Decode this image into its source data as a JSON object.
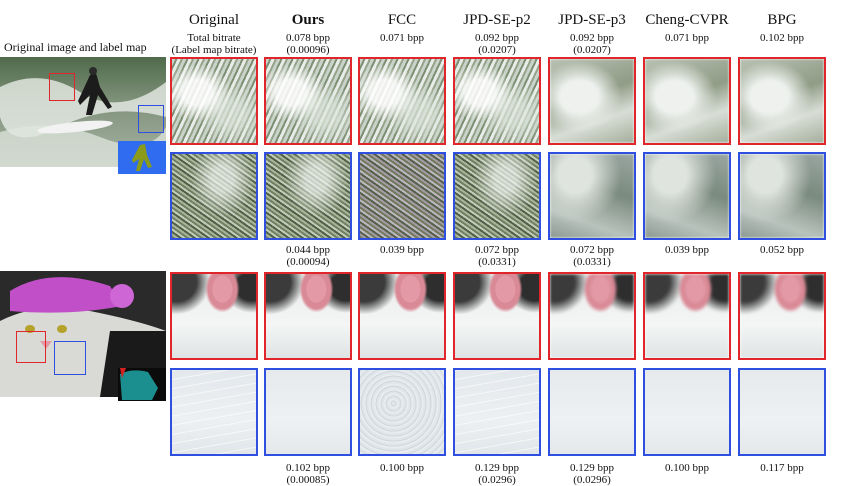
{
  "side_title": "Original image and label map",
  "columns": [
    {
      "label": "Original",
      "bold": false,
      "surf_caption": [
        "Total bitrate",
        "(Label map bitrate)"
      ],
      "cat_caption_top": [
        "",
        ""
      ],
      "cat_caption_bottom": [
        "",
        ""
      ]
    },
    {
      "label": "Ours",
      "bold": true,
      "surf_caption": [
        "0.078 bpp",
        "(0.00096)"
      ],
      "cat_caption_top": [
        "0.044 bpp",
        "(0.00094)"
      ],
      "cat_caption_bottom": [
        "0.102 bpp",
        "(0.00085)"
      ]
    },
    {
      "label": "FCC",
      "bold": false,
      "surf_caption": [
        "0.071 bpp",
        ""
      ],
      "cat_caption_top": [
        "0.039 bpp",
        ""
      ],
      "cat_caption_bottom": [
        "0.100 bpp",
        ""
      ]
    },
    {
      "label": "JPD-SE-p2",
      "bold": false,
      "surf_caption": [
        "0.092 bpp",
        "(0.0207)"
      ],
      "cat_caption_top": [
        "0.072 bpp",
        "(0.0331)"
      ],
      "cat_caption_bottom": [
        "0.129 bpp",
        "(0.0296)"
      ]
    },
    {
      "label": "JPD-SE-p3",
      "bold": false,
      "surf_caption": [
        "0.092 bpp",
        "(0.0207)"
      ],
      "cat_caption_top": [
        "0.072 bpp",
        "(0.0331)"
      ],
      "cat_caption_bottom": [
        "0.129 bpp",
        "(0.0296)"
      ]
    },
    {
      "label": "Cheng-CVPR",
      "bold": false,
      "surf_caption": [
        "0.071 bpp",
        ""
      ],
      "cat_caption_top": [
        "0.039 bpp",
        ""
      ],
      "cat_caption_bottom": [
        "0.100 bpp",
        ""
      ]
    },
    {
      "label": "BPG",
      "bold": false,
      "surf_caption": [
        "0.102 bpp",
        ""
      ],
      "cat_caption_top": [
        "0.052 bpp",
        ""
      ],
      "cat_caption_bottom": [
        "0.117 bpp",
        ""
      ]
    }
  ],
  "colors": {
    "red_crop": "#e0262a",
    "blue_crop": "#2f4fe0",
    "label_bg_surf": "#2f6cf0",
    "label_bg_cat": "#1b8f8f"
  }
}
